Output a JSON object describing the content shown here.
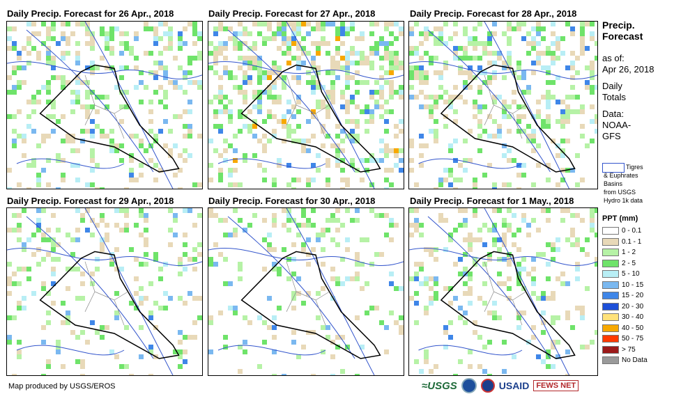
{
  "panels": [
    {
      "title": "Daily Precip. Forecast for 26 Apr., 2018"
    },
    {
      "title": "Daily Precip. Forecast for 27 Apr., 2018"
    },
    {
      "title": "Daily Precip. Forecast for 28 Apr., 2018"
    },
    {
      "title": "Daily Precip. Forecast for 29 Apr., 2018"
    },
    {
      "title": "Daily Precip. Forecast for 30 Apr., 2018"
    },
    {
      "title": "Daily Precip. Forecast for 1 May., 2018"
    }
  ],
  "sidebar": {
    "title_line1": "Precip.",
    "title_line2": "Forecast",
    "asof_label": "as of:",
    "asof_date": "Apr 26, 2018",
    "daily1": "Daily",
    "daily2": "Totals",
    "data1": "Data:",
    "data2": "NOAA-",
    "data3": "GFS",
    "basin_lines": [
      "Tigres",
      "& Euphrates",
      "Basins",
      "from USGS",
      "Hydro 1k data"
    ],
    "basin_color": "#3355cc"
  },
  "legend": {
    "title": "PPT (mm)",
    "items": [
      {
        "label": "0 - 0.1",
        "color": "#ffffff"
      },
      {
        "label": "0.1 - 1",
        "color": "#e8d9b8"
      },
      {
        "label": "1 - 2",
        "color": "#b6f2a6"
      },
      {
        "label": "2 - 5",
        "color": "#6fe36a"
      },
      {
        "label": "5 - 10",
        "color": "#b8eef5"
      },
      {
        "label": "10 - 15",
        "color": "#7ab8f0"
      },
      {
        "label": "15 - 20",
        "color": "#3f86e8"
      },
      {
        "label": "20 - 30",
        "color": "#1d4fd8"
      },
      {
        "label": "30 - 40",
        "color": "#ffe27a"
      },
      {
        "label": "40 - 50",
        "color": "#f7a800"
      },
      {
        "label": "50 - 75",
        "color": "#ff3a00"
      },
      {
        "label": "> 75",
        "color": "#9c1a1a"
      },
      {
        "label": "No Data",
        "color": "#9a9a9a"
      }
    ]
  },
  "footer": {
    "credit": "Map produced by USGS/EROS",
    "logo_usgs": "≈USGS",
    "logo_usaid": "USAID",
    "logo_fews": "FEWS NET"
  }
}
